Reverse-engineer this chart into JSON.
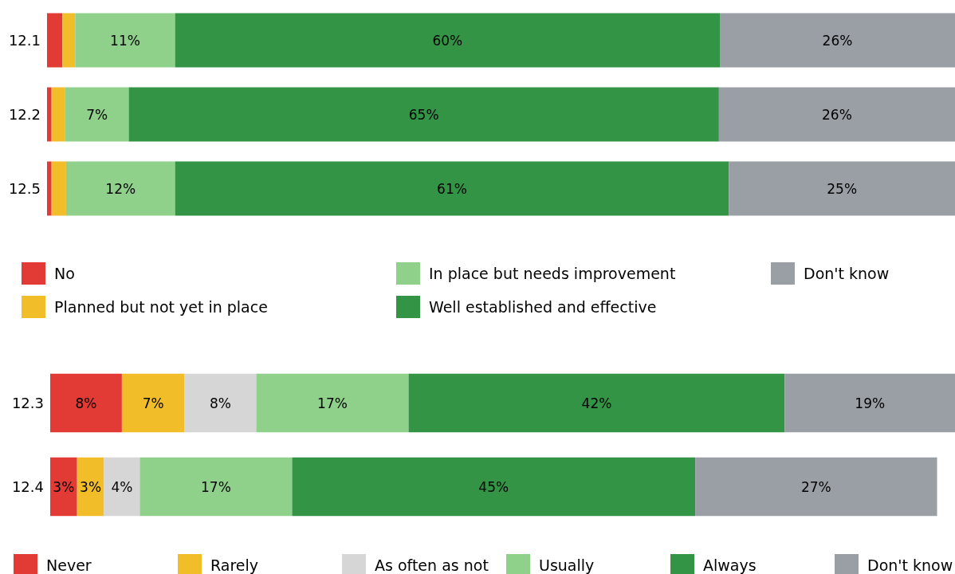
{
  "chart_data": [
    {
      "type": "bar",
      "orientation": "horizontal",
      "stacked": true,
      "categories": [
        "12.1",
        "12.2",
        "12.5"
      ],
      "xlim": [
        0,
        100
      ],
      "tick_labels": "y",
      "legend": "bottom",
      "grid": false,
      "series": [
        {
          "name": "No",
          "color": "#e23a35",
          "values": [
            1.7,
            0.5,
            0.5
          ],
          "value_labels": [
            null,
            null,
            null
          ]
        },
        {
          "name": "Planned but not yet in place",
          "color": "#f1bd28",
          "values": [
            1.4,
            1.5,
            1.6
          ],
          "value_labels": [
            null,
            null,
            null
          ]
        },
        {
          "name": "In place but needs improvement",
          "color": "#8fd18a",
          "values": [
            11,
            7,
            12
          ],
          "value_labels": [
            "11%",
            "7%",
            "12%"
          ]
        },
        {
          "name": "Well established and effective",
          "color": "#329444",
          "values": [
            60,
            65,
            61
          ],
          "value_labels": [
            "60%",
            "65%",
            "61%"
          ]
        },
        {
          "name": "Don't know",
          "color": "#9a9ea5",
          "values": [
            26,
            26,
            25
          ],
          "value_labels": [
            "26%",
            "26%",
            "25%"
          ]
        }
      ]
    },
    {
      "type": "bar",
      "orientation": "horizontal",
      "stacked": true,
      "categories": [
        "12.3",
        "12.4"
      ],
      "xlim": [
        0,
        101
      ],
      "tick_labels": "y",
      "legend": "bottom",
      "grid": false,
      "series": [
        {
          "name": "Never",
          "color": "#e23a35",
          "values": [
            8,
            3
          ],
          "value_labels": [
            "8%",
            "3%"
          ]
        },
        {
          "name": "Rarely",
          "color": "#f1bd28",
          "values": [
            7,
            3
          ],
          "value_labels": [
            "7%",
            "3%"
          ]
        },
        {
          "name": "As often as not",
          "color": "#d6d6d6",
          "values": [
            8,
            4
          ],
          "value_labels": [
            "8%",
            "4%"
          ]
        },
        {
          "name": "Usually",
          "color": "#8fd18a",
          "values": [
            17,
            17
          ],
          "value_labels": [
            "17%",
            "17%"
          ]
        },
        {
          "name": "Always",
          "color": "#329444",
          "values": [
            42,
            45
          ],
          "value_labels": [
            "42%",
            "45%"
          ]
        },
        {
          "name": "Don't know",
          "color": "#9a9ea5",
          "values": [
            19,
            27
          ],
          "value_labels": [
            "19%",
            "27%"
          ]
        }
      ]
    }
  ]
}
